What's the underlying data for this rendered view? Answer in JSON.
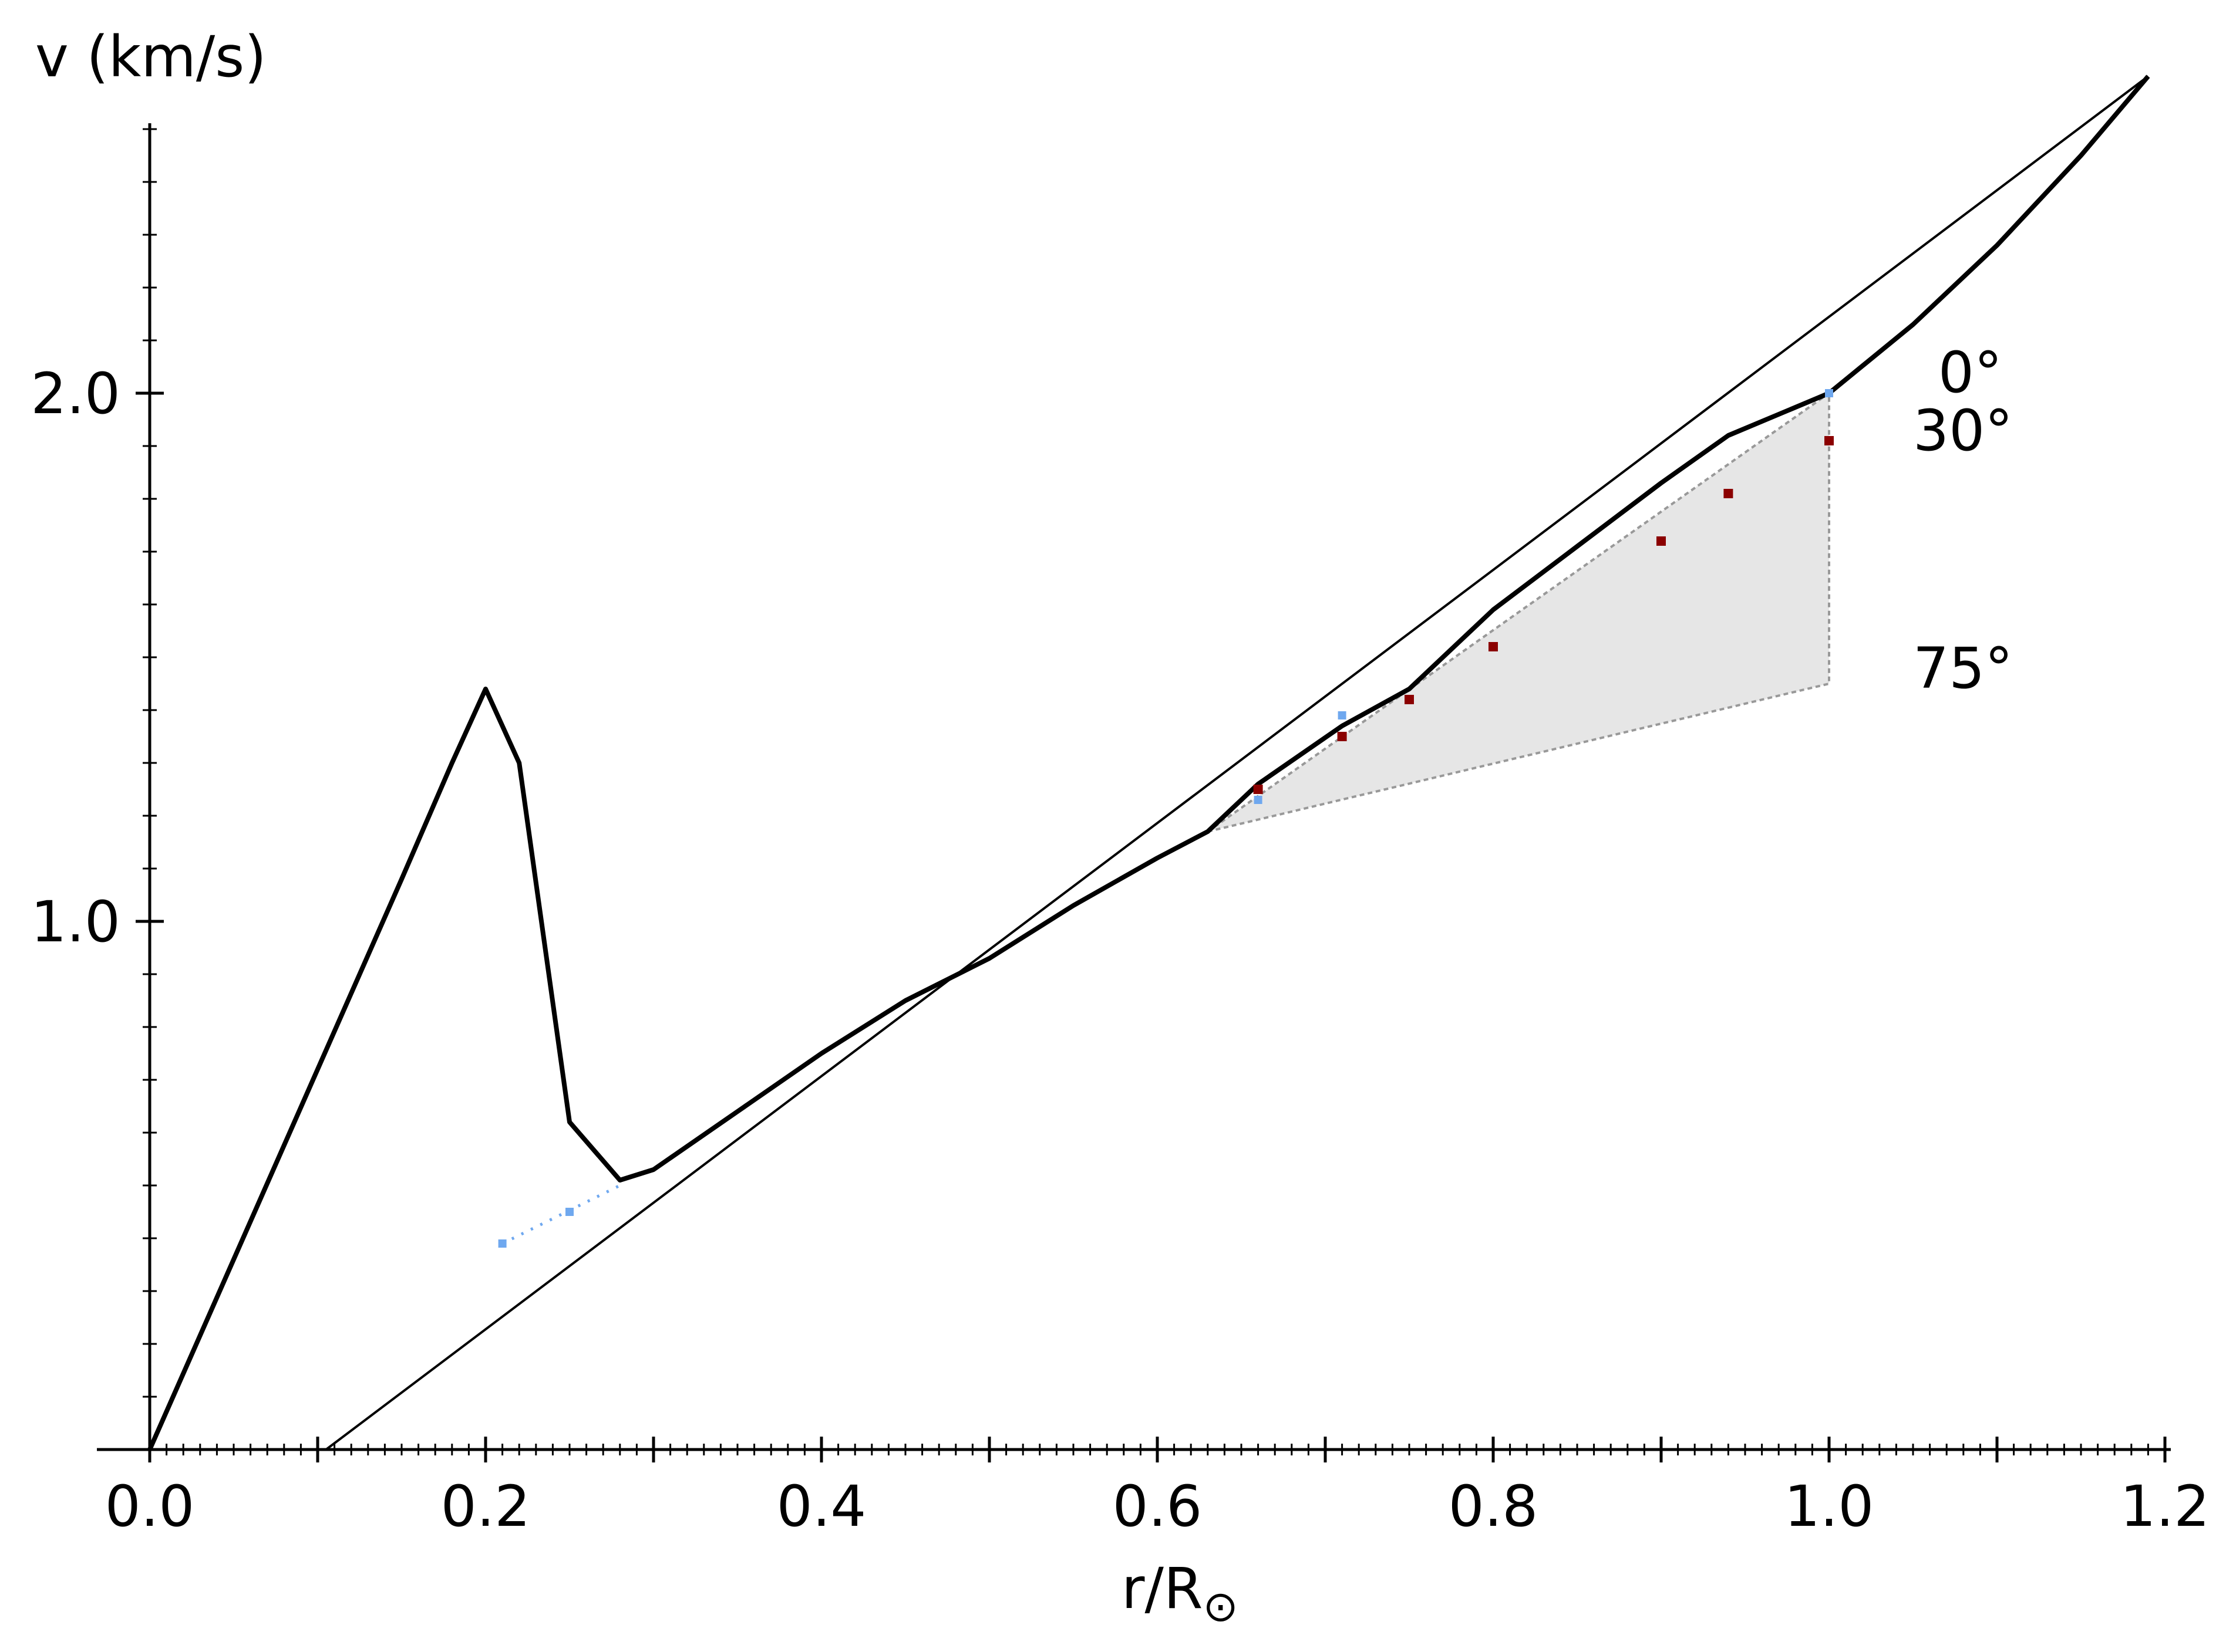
{
  "chart_data": {
    "type": "line",
    "title": "",
    "xlabel": "r/R",
    "xlabel_subscript": "⊙",
    "ylabel": "v (km/s)",
    "xlim": [
      0.0,
      1.2
    ],
    "ylim": [
      0.0,
      2.6
    ],
    "x_ticks": [
      "0.0",
      "0.2",
      "0.4",
      "0.6",
      "0.8",
      "1.0",
      "1.2"
    ],
    "y_ticks": [
      "1.0",
      "2.0"
    ],
    "grid": false,
    "legend": "none",
    "colors": {
      "curve": "#000000",
      "blue_points": "#6fa8ef",
      "red_points": "#8b0000",
      "shade": "#e6e6e6",
      "shade_edge": "#999999"
    },
    "angle_labels": [
      {
        "text": "0°",
        "x": 1.065,
        "y": 2.04
      },
      {
        "text": "30°",
        "x": 1.05,
        "y": 1.93
      },
      {
        "text": "75°",
        "x": 1.05,
        "y": 1.48
      }
    ],
    "series": [
      {
        "name": "",
        "style": "thick",
        "x": [
          0.0,
          0.05,
          0.1,
          0.15,
          0.18,
          0.2,
          0.22,
          0.25,
          0.28,
          0.3,
          0.35,
          0.4,
          0.45,
          0.5,
          0.55,
          0.6,
          0.63,
          0.66,
          0.71,
          0.75,
          0.8,
          0.85,
          0.9,
          0.94,
          1.0,
          1.05,
          1.1,
          1.15,
          1.19
        ],
        "y": [
          0.0,
          0.36,
          0.72,
          1.08,
          1.3,
          1.44,
          1.3,
          0.62,
          0.51,
          0.53,
          0.64,
          0.75,
          0.85,
          0.93,
          1.03,
          1.12,
          1.17,
          1.26,
          1.37,
          1.44,
          1.59,
          1.71,
          1.83,
          1.92,
          2.0,
          2.13,
          2.28,
          2.45,
          2.6
        ]
      },
      {
        "name": "",
        "style": "thin",
        "x": [
          0.105,
          1.19
        ],
        "y": [
          0.0,
          2.6
        ]
      }
    ],
    "shaded_region": {
      "x": [
        0.63,
        1.0,
        1.0
      ],
      "y": [
        1.17,
        2.0,
        1.45
      ]
    },
    "points": {
      "blue": [
        {
          "x": 0.21,
          "y": 0.39
        },
        {
          "x": 0.25,
          "y": 0.45
        },
        {
          "x": 0.66,
          "y": 1.23
        },
        {
          "x": 0.71,
          "y": 1.39
        },
        {
          "x": 1.0,
          "y": 2.0
        }
      ],
      "red": [
        {
          "x": 0.66,
          "y": 1.25
        },
        {
          "x": 0.71,
          "y": 1.35
        },
        {
          "x": 0.75,
          "y": 1.42
        },
        {
          "x": 0.8,
          "y": 1.52
        },
        {
          "x": 0.9,
          "y": 1.72
        },
        {
          "x": 0.94,
          "y": 1.81
        },
        {
          "x": 1.0,
          "y": 1.91
        }
      ]
    }
  }
}
